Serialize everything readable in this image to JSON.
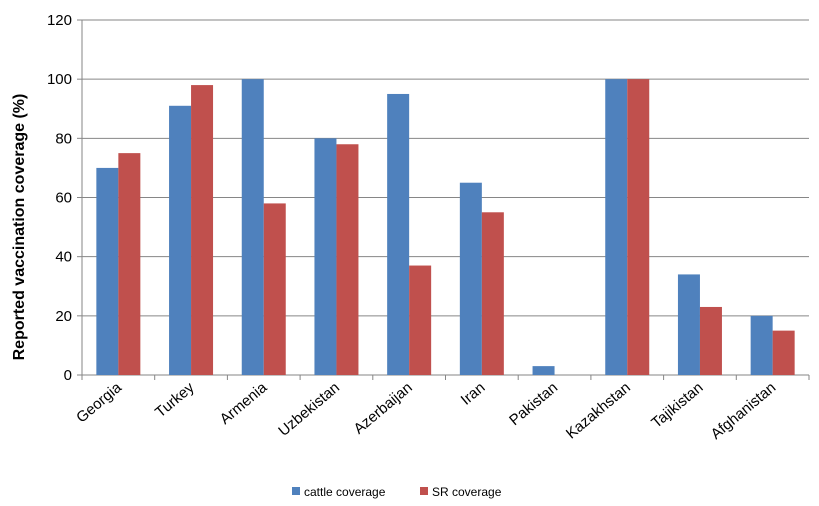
{
  "chart_data": {
    "type": "bar",
    "categories": [
      "Georgia",
      "Turkey",
      "Armenia",
      "Uzbekistan",
      "Azerbaijan",
      "Iran",
      "Pakistan",
      "Kazakhstan",
      "Tajikistan",
      "Afghanistan"
    ],
    "series": [
      {
        "name": "cattle coverage",
        "color": "#4F81BD",
        "values": [
          70,
          91,
          100,
          80,
          95,
          65,
          3,
          100,
          34,
          20
        ]
      },
      {
        "name": "SR coverage",
        "color": "#C0504D",
        "values": [
          75,
          98,
          58,
          78,
          37,
          55,
          0,
          100,
          23,
          15
        ]
      }
    ],
    "ylabel": "Reported vaccination coverage  (%)",
    "xlabel": "",
    "ylim": [
      0,
      120
    ],
    "yticks": [
      0,
      20,
      40,
      60,
      80,
      100,
      120
    ],
    "grid": true,
    "legend": "bottom"
  }
}
